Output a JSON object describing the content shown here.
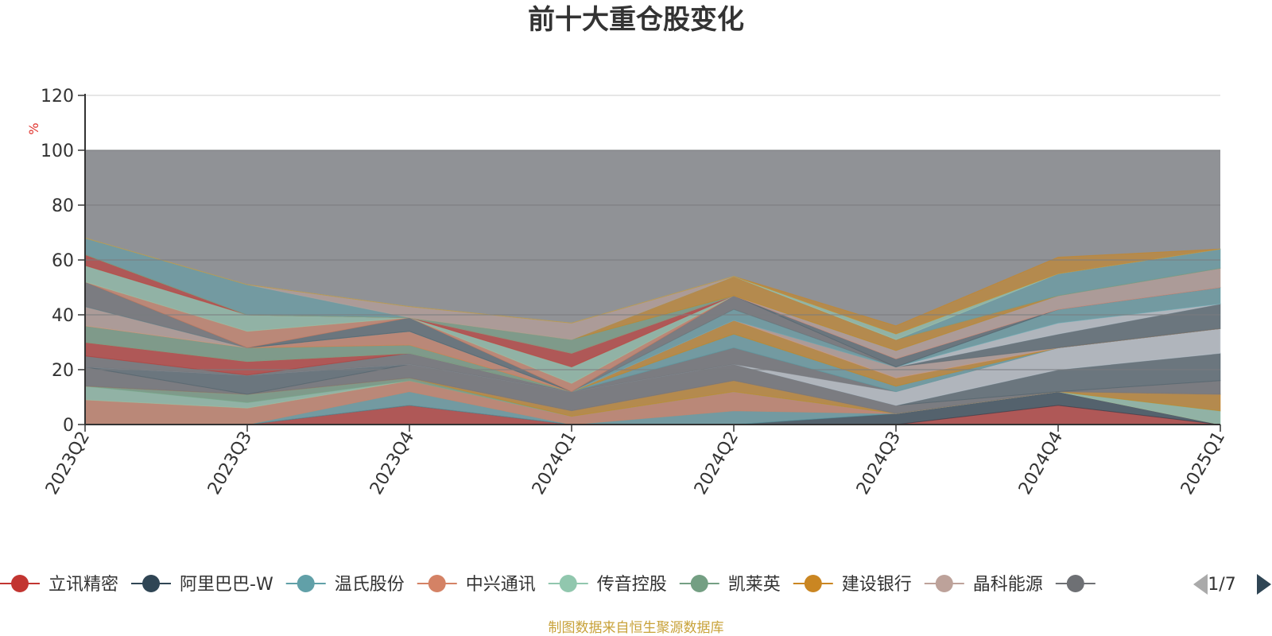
{
  "chart_data": {
    "type": "area",
    "title": "前十大重仓股变化",
    "ylabel": "%",
    "ylim": [
      0,
      120
    ],
    "yticks": [
      0,
      20,
      40,
      60,
      80,
      100,
      120
    ],
    "grid": true,
    "x": [
      "2023Q2",
      "2023Q3",
      "2023Q4",
      "2024Q1",
      "2024Q2",
      "2024Q3",
      "2024Q4",
      "2025Q1"
    ],
    "background_band": {
      "from": 0,
      "to": 100,
      "color": "#909296"
    },
    "series": [
      {
        "name": "立讯精密",
        "color": "#c23531",
        "values": [
          0,
          0,
          7,
          0,
          0,
          0,
          7,
          0
        ]
      },
      {
        "name": "阿里巴巴-W",
        "color": "#2f4554",
        "values": [
          0,
          0,
          0,
          0,
          0,
          4,
          5,
          0
        ]
      },
      {
        "name": "温氏股份",
        "color": "#61a0a8",
        "values": [
          0,
          0,
          5,
          0,
          5,
          0,
          0,
          0
        ]
      },
      {
        "name": "中兴通讯",
        "color": "#d48265",
        "values": [
          9,
          6,
          4,
          3,
          7,
          0,
          0,
          0
        ]
      },
      {
        "name": "传音控股",
        "color": "#91c7ae",
        "values": [
          5,
          2,
          0,
          0,
          0,
          0,
          0,
          5
        ]
      },
      {
        "name": "凯莱英",
        "color": "#749f83",
        "values": [
          0,
          3,
          1,
          0,
          0,
          0,
          0,
          0
        ]
      },
      {
        "name": "建设银行",
        "color": "#ca8622",
        "values": [
          0,
          0,
          0,
          2,
          4,
          0,
          0,
          6
        ]
      },
      {
        "name": "晶科能源",
        "color": "#bda29a",
        "values": [
          0,
          0,
          0,
          0,
          0,
          0,
          0,
          0
        ]
      },
      {
        "name": "",
        "color": "#6e7074",
        "values": [
          7,
          0,
          5,
          7,
          6,
          3,
          0,
          5
        ]
      },
      {
        "name": "",
        "color": "#546570",
        "values": [
          0,
          7,
          0,
          0,
          0,
          0,
          8,
          10
        ]
      },
      {
        "name": "",
        "color": "#c4ccd3",
        "values": [
          0,
          0,
          0,
          0,
          0,
          5,
          8,
          9
        ]
      },
      {
        "name": "",
        "color": "#6e7074",
        "values": [
          4,
          0,
          4,
          0,
          6,
          0,
          0,
          0
        ]
      },
      {
        "name": "",
        "color": "#61a0a8",
        "values": [
          0,
          0,
          0,
          0,
          5,
          2,
          0,
          0
        ]
      },
      {
        "name": "",
        "color": "#c23531",
        "values": [
          5,
          5,
          0,
          0,
          0,
          0,
          0,
          0
        ]
      },
      {
        "name": "",
        "color": "#91c7ae",
        "values": [
          0,
          0,
          0,
          0,
          0,
          0,
          0,
          0
        ]
      },
      {
        "name": "",
        "color": "#749f83",
        "values": [
          6,
          5,
          3,
          0,
          0,
          0,
          0,
          0
        ]
      },
      {
        "name": "",
        "color": "#ca8622",
        "values": [
          0,
          0,
          0,
          0,
          5,
          3,
          0,
          0
        ]
      },
      {
        "name": "",
        "color": "#d48265",
        "values": [
          0,
          0,
          5,
          0,
          0,
          0,
          0,
          0
        ]
      },
      {
        "name": "",
        "color": "#bda29a",
        "values": [
          7,
          0,
          0,
          0,
          0,
          4,
          0,
          0
        ]
      },
      {
        "name": "",
        "color": "#546570",
        "values": [
          0,
          0,
          0,
          0,
          0,
          0,
          5,
          9
        ]
      },
      {
        "name": "",
        "color": "#c4ccd3",
        "values": [
          0,
          0,
          0,
          0,
          0,
          0,
          4,
          0
        ]
      },
      {
        "name": "",
        "color": "#61a0a8",
        "values": [
          0,
          0,
          0,
          0,
          4,
          0,
          5,
          6
        ]
      },
      {
        "name": "",
        "color": "#6e7074",
        "values": [
          9,
          0,
          0,
          0,
          5,
          0,
          0,
          0
        ]
      },
      {
        "name": "",
        "color": "#546570",
        "values": [
          0,
          0,
          5,
          0,
          0,
          3,
          0,
          0
        ]
      },
      {
        "name": "",
        "color": "#d48265",
        "values": [
          0,
          6,
          0,
          3,
          0,
          0,
          0,
          0
        ]
      },
      {
        "name": "",
        "color": "#91c7ae",
        "values": [
          6,
          6,
          0,
          6,
          0,
          0,
          0,
          0
        ]
      },
      {
        "name": "",
        "color": "#c23531",
        "values": [
          4,
          0,
          0,
          5,
          0,
          0,
          0,
          0
        ]
      },
      {
        "name": "",
        "color": "#bda29a",
        "values": [
          0,
          0,
          0,
          0,
          0,
          3,
          5,
          7
        ]
      },
      {
        "name": "",
        "color": "#749f83",
        "values": [
          0,
          0,
          0,
          5,
          0,
          0,
          0,
          0
        ]
      },
      {
        "name": "",
        "color": "#ca8622",
        "values": [
          0,
          0,
          0,
          0,
          7,
          4,
          0,
          0
        ]
      },
      {
        "name": "",
        "color": "#61a0a8",
        "values": [
          6,
          11,
          0,
          0,
          0,
          0,
          8,
          7
        ]
      },
      {
        "name": "",
        "color": "#bda29a",
        "values": [
          0,
          0,
          4,
          6,
          0,
          0,
          0,
          0
        ]
      },
      {
        "name": "",
        "color": "#91c7ae",
        "values": [
          0,
          0,
          0,
          0,
          0,
          2,
          0,
          0
        ]
      },
      {
        "name": "",
        "color": "#ca8622",
        "values": [
          0,
          0,
          0,
          0,
          0,
          3,
          6,
          0
        ]
      }
    ]
  },
  "legend": {
    "items": [
      {
        "label": "立讯精密",
        "color": "#c23531"
      },
      {
        "label": "阿里巴巴-W",
        "color": "#2f4554"
      },
      {
        "label": "温氏股份",
        "color": "#61a0a8"
      },
      {
        "label": "中兴通讯",
        "color": "#d48265"
      },
      {
        "label": "传音控股",
        "color": "#91c7ae"
      },
      {
        "label": "凯莱英",
        "color": "#749f83"
      },
      {
        "label": "建设银行",
        "color": "#ca8622"
      },
      {
        "label": "晶科能源",
        "color": "#bda29a"
      },
      {
        "label": "",
        "color": "#6e7074"
      }
    ],
    "page_indicator": "1/7",
    "prev_icon": "triangle-left-icon",
    "next_icon": "triangle-right-icon",
    "prev_color": "#aaaaaa",
    "next_color": "#2f4554"
  },
  "source_note": {
    "text": "制图数据来自恒生聚源数据库",
    "color": "#c8a23a"
  }
}
